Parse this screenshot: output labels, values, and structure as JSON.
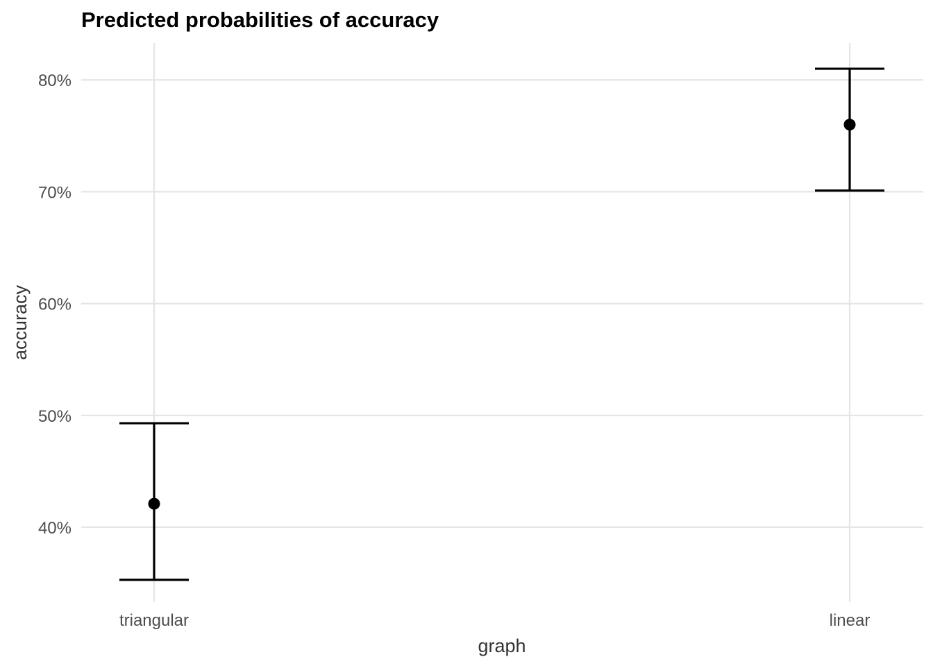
{
  "chart_data": {
    "type": "errorbar",
    "title": "Predicted probabilities of accuracy",
    "xlabel": "graph",
    "ylabel": "accuracy",
    "categories": [
      "triangular",
      "linear"
    ],
    "values": [
      0.421,
      0.76
    ],
    "lower": [
      0.353,
      0.701
    ],
    "upper": [
      0.493,
      0.81
    ],
    "yticks": [
      0.4,
      0.5,
      0.6,
      0.7,
      0.8
    ],
    "ytick_labels": [
      "40%",
      "50%",
      "60%",
      "70%",
      "80%"
    ],
    "ylim": [
      0.333,
      0.833
    ],
    "grid": true,
    "colors": {
      "marks": "#000000",
      "grid": "#e5e5e5"
    }
  }
}
